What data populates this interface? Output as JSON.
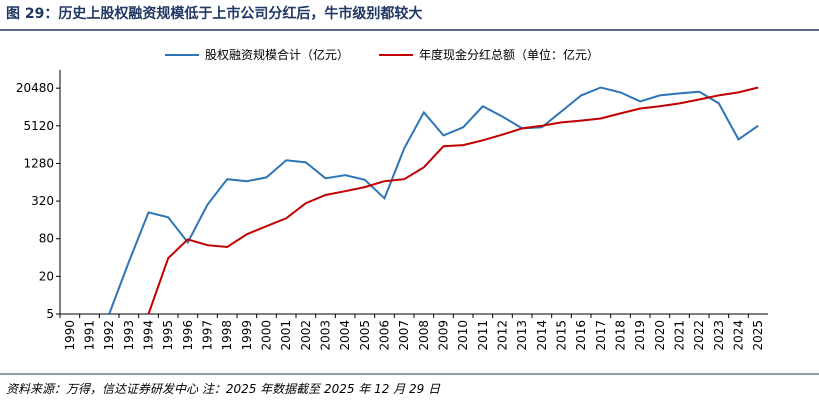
{
  "chart_data": {
    "type": "line",
    "title": "图 29：历史上股权融资规模低于上市公司分红后，牛市级别都较大",
    "source": "资料来源：万得，信达证券研发中心 注：2025 年数据截至 2025 年 12 月 29 日",
    "categories": [
      "1990",
      "1991",
      "1992",
      "1993",
      "1994",
      "1995",
      "1996",
      "1997",
      "1998",
      "1999",
      "2000",
      "2001",
      "2002",
      "2003",
      "2004",
      "2005",
      "2006",
      "2007",
      "2008",
      "2009",
      "2010",
      "2011",
      "2012",
      "2013",
      "2014",
      "2015",
      "2016",
      "2017",
      "2018",
      "2019",
      "2020",
      "2021",
      "2022",
      "2023",
      "2024",
      "2025"
    ],
    "series": [
      {
        "name": "股权融资规模合计（亿元）",
        "color": "#2e75b6",
        "values": [
          null,
          null,
          5,
          34,
          211,
          176,
          70,
          280,
          716,
          665,
          766,
          1436,
          1330,
          740,
          834,
          700,
          355,
          2230,
          8400,
          3600,
          4850,
          10500,
          7200,
          4650,
          4850,
          8700,
          15700,
          21000,
          17500,
          12600,
          15700,
          16900,
          18000,
          11700,
          3100,
          5150
        ]
      },
      {
        "name": "年度现金分红总额（单位：亿元）",
        "color": "#c00000",
        "values": [
          null,
          null,
          null,
          null,
          5,
          39,
          78,
          63,
          59,
          94,
          127,
          170,
          296,
          400,
          460,
          535,
          665,
          716,
          1110,
          2420,
          2520,
          3000,
          3700,
          4650,
          5150,
          5800,
          6200,
          6700,
          8100,
          9700,
          10500,
          11700,
          13500,
          15700,
          17500,
          21000
        ]
      }
    ],
    "ylim": [
      5,
      40000
    ],
    "yticks": [
      5,
      20,
      80,
      320,
      1280,
      5120,
      20480
    ],
    "log_scale": true,
    "grid": false,
    "legend": "top"
  }
}
